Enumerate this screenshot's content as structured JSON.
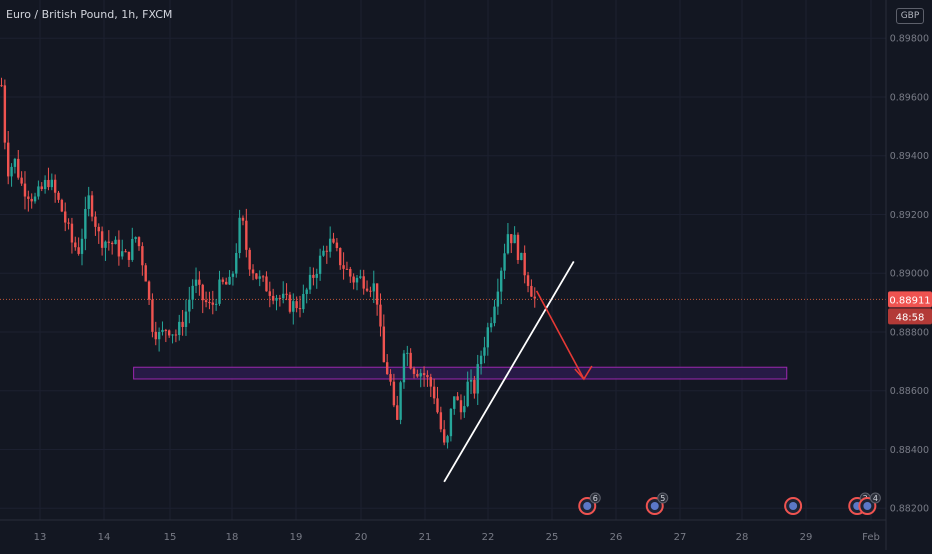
{
  "header": {
    "title": "Euro / British Pound, 1h, FXCM",
    "currency_badge": "GBP"
  },
  "price_tag": {
    "price": "0.88911",
    "countdown": "48:58",
    "color": "#ef5350"
  },
  "colors": {
    "background": "#131722",
    "grid": "#1c2030",
    "up": "#26a69a",
    "down": "#ef5350",
    "zone_fill": "#2a1b4a",
    "zone_stroke": "#9c27b0",
    "trendline": "#ffffff",
    "arrow": "#e53935",
    "axis_text": "#787b86"
  },
  "chart_data": {
    "type": "candlestick",
    "timeframe": "1h",
    "symbol": "EURGBP",
    "exchange": "FXCM",
    "x_ticks": [
      "13",
      "14",
      "15",
      "18",
      "19",
      "20",
      "21",
      "22",
      "25",
      "26",
      "27",
      "28",
      "29",
      "Feb"
    ],
    "y_ticks": [
      "0.89800",
      "0.89600",
      "0.89400",
      "0.89200",
      "0.89000",
      "0.88800",
      "0.88600",
      "0.88400",
      "0.88200"
    ],
    "ylim": [
      0.8816,
      0.8993
    ],
    "grid": true,
    "last_price": 0.88911,
    "price_path": [
      [
        0,
        0.8964
      ],
      [
        0.8,
        0.8935
      ],
      [
        2,
        0.8938
      ],
      [
        3,
        0.893
      ],
      [
        5,
        0.8925
      ],
      [
        7,
        0.8932
      ],
      [
        9,
        0.8921
      ],
      [
        10.5,
        0.891
      ],
      [
        11.5,
        0.8908
      ],
      [
        13,
        0.8926
      ],
      [
        14.5,
        0.8912
      ],
      [
        16.5,
        0.891
      ],
      [
        18.5,
        0.8905
      ],
      [
        20,
        0.8913
      ],
      [
        21.5,
        0.8898
      ],
      [
        22.2,
        0.8883
      ],
      [
        23.5,
        0.8878
      ],
      [
        24.5,
        0.8882
      ],
      [
        26,
        0.8879
      ],
      [
        27.5,
        0.8888
      ],
      [
        28.5,
        0.8898
      ],
      [
        29.5,
        0.8892
      ],
      [
        31,
        0.8888
      ],
      [
        32.5,
        0.8896
      ],
      [
        34,
        0.8896
      ],
      [
        35.5,
        0.892
      ],
      [
        36.5,
        0.8905
      ],
      [
        38,
        0.8898
      ],
      [
        40,
        0.8894
      ],
      [
        41.5,
        0.8891
      ],
      [
        43,
        0.8889
      ],
      [
        44.5,
        0.889
      ],
      [
        46.5,
        0.8901
      ],
      [
        48.5,
        0.8911
      ],
      [
        50.5,
        0.8903
      ],
      [
        52,
        0.8898
      ],
      [
        53.5,
        0.8898
      ],
      [
        55.5,
        0.8895
      ],
      [
        56.5,
        0.887
      ],
      [
        57.5,
        0.8865
      ],
      [
        58.5,
        0.8845
      ],
      [
        59.5,
        0.8876
      ],
      [
        61,
        0.8868
      ],
      [
        62.5,
        0.8866
      ],
      [
        64,
        0.886
      ],
      [
        65,
        0.8848
      ],
      [
        65.8,
        0.8838
      ],
      [
        67,
        0.886
      ],
      [
        68,
        0.8852
      ],
      [
        69,
        0.8862
      ],
      [
        70,
        0.886
      ],
      [
        71,
        0.8872
      ],
      [
        72.5,
        0.8885
      ],
      [
        74,
        0.8902
      ],
      [
        75,
        0.8914
      ],
      [
        76,
        0.8911
      ],
      [
        77,
        0.8904
      ],
      [
        78,
        0.8898
      ],
      [
        79,
        0.8891
      ]
    ],
    "annotations": {
      "support_zone": {
        "from": 0.8864,
        "to": 0.8868,
        "x_from": 19.5,
        "x_to": 117
      },
      "trendline": {
        "from": [
          65.8,
          0.8829
        ],
        "to": [
          85,
          0.8904
        ]
      },
      "forecast_arrow": {
        "from": [
          79.5,
          0.8894
        ],
        "to": [
          86.5,
          0.8864
        ]
      },
      "event_markers": [
        {
          "x": 87,
          "count": "6"
        },
        {
          "x": 97,
          "count": "5"
        },
        {
          "x": 117.5,
          "count": ""
        },
        {
          "x": 127,
          "count": "2"
        },
        {
          "x": 128.5,
          "count": "4"
        }
      ]
    }
  }
}
